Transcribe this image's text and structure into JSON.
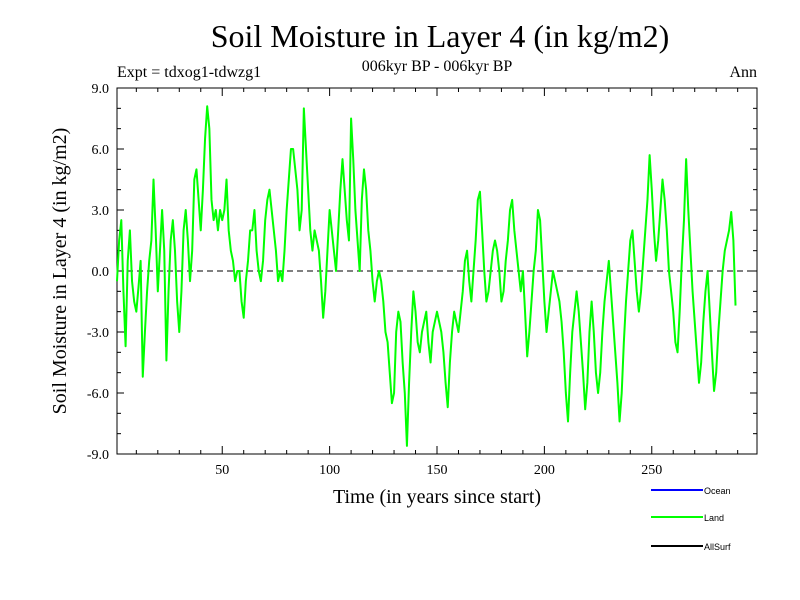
{
  "chart_data": {
    "type": "line",
    "title": "Soil Moisture in Layer 4 (in kg/m2)",
    "subtitle": "006kyr BP - 006kyr BP",
    "expt_label": "Expt = tdxog1-tdwzg1",
    "season_label": "Ann",
    "xlabel": "Time (in years since start)",
    "ylabel": "Soil Moisture in Layer 4 (in kg/m2)",
    "xlim": [
      1,
      299
    ],
    "ylim": [
      -9,
      9
    ],
    "xticks": [
      50,
      100,
      150,
      200,
      250
    ],
    "xtick_labels": [
      "50",
      "100",
      "150",
      "200",
      "250"
    ],
    "yticks": [
      9,
      6,
      3,
      0,
      -3,
      -6,
      -9
    ],
    "ytick_labels": [
      "9.0",
      "6.0",
      "3.0",
      "0.0",
      "-3.0",
      "-6.0",
      "-9.0"
    ],
    "zero_line": true,
    "legend": [
      {
        "name": "Ocean",
        "color": "#0000ff"
      },
      {
        "name": "Land",
        "color": "#00ff00"
      },
      {
        "name": "AllSurf",
        "color": "#000000"
      }
    ],
    "series": [
      {
        "name": "Land",
        "color": "#00ff00",
        "x_start": 1,
        "x_step": 1,
        "values": [
          -0.5,
          1.5,
          2.5,
          -1.0,
          -3.7,
          0.5,
          2.0,
          -0.5,
          -1.5,
          -2.0,
          -0.8,
          0.5,
          -5.2,
          -3.0,
          -1.0,
          0.5,
          1.5,
          4.5,
          2.0,
          -1.0,
          1.0,
          3.0,
          1.0,
          -4.4,
          -1.0,
          1.5,
          2.5,
          1.0,
          -1.5,
          -3.0,
          -1.0,
          2.0,
          3.0,
          1.5,
          -0.5,
          1.0,
          4.5,
          5.0,
          3.5,
          2.0,
          4.0,
          6.5,
          8.1,
          7.0,
          3.5,
          2.5,
          3.0,
          2.0,
          3.0,
          2.5,
          3.0,
          4.5,
          2.0,
          1.0,
          0.5,
          -0.5,
          0.0,
          0.0,
          -1.5,
          -2.3,
          -0.5,
          0.5,
          2.0,
          2.0,
          3.0,
          1.0,
          0.0,
          -0.5,
          0.5,
          2.5,
          3.5,
          4.0,
          3.0,
          2.0,
          1.0,
          -0.5,
          0.0,
          -0.5,
          1.0,
          3.0,
          4.5,
          6.0,
          6.0,
          5.0,
          4.0,
          2.0,
          3.0,
          8.0,
          6.0,
          4.0,
          2.0,
          1.0,
          2.0,
          1.5,
          1.0,
          -0.5,
          -2.3,
          -1.0,
          1.0,
          3.0,
          2.0,
          1.0,
          0.0,
          2.0,
          4.0,
          5.5,
          4.0,
          2.5,
          1.5,
          7.5,
          5.5,
          3.0,
          1.5,
          0.0,
          3.5,
          5.0,
          4.0,
          2.0,
          1.0,
          -0.5,
          -1.5,
          -0.5,
          0.0,
          -0.5,
          -1.5,
          -3.0,
          -3.5,
          -5.0,
          -6.5,
          -6.0,
          -3.0,
          -2.0,
          -2.5,
          -4.5,
          -6.0,
          -8.6,
          -5.5,
          -3.0,
          -1.0,
          -2.0,
          -3.5,
          -4.0,
          -3.0,
          -2.5,
          -2.0,
          -3.5,
          -4.5,
          -3.0,
          -2.5,
          -2.0,
          -2.5,
          -3.0,
          -4.0,
          -5.5,
          -6.7,
          -4.5,
          -3.0,
          -2.0,
          -2.5,
          -3.0,
          -2.0,
          -1.0,
          0.5,
          1.0,
          -0.5,
          -1.5,
          0.0,
          1.5,
          3.5,
          3.9,
          2.0,
          0.0,
          -1.5,
          -1.0,
          0.0,
          1.0,
          1.5,
          1.0,
          0.0,
          -1.5,
          -1.0,
          0.5,
          1.5,
          3.0,
          3.5,
          2.0,
          1.0,
          0.0,
          -1.0,
          0.0,
          -2.0,
          -4.2,
          -3.0,
          -1.5,
          0.0,
          1.0,
          3.0,
          2.5,
          0.5,
          -1.5,
          -3.0,
          -2.0,
          -1.0,
          0.0,
          -0.5,
          -1.0,
          -1.5,
          -2.5,
          -4.0,
          -6.0,
          -7.4,
          -5.0,
          -3.0,
          -2.0,
          -1.0,
          -2.0,
          -3.5,
          -5.0,
          -6.8,
          -5.5,
          -3.0,
          -1.5,
          -3.0,
          -5.0,
          -6.0,
          -5.0,
          -3.0,
          -1.5,
          -0.5,
          0.5,
          -1.0,
          -2.5,
          -4.0,
          -5.5,
          -7.4,
          -6.0,
          -3.5,
          -1.5,
          0.0,
          1.5,
          2.0,
          0.5,
          -1.0,
          -2.0,
          -1.0,
          0.5,
          2.0,
          3.5,
          5.7,
          4.0,
          2.0,
          0.5,
          1.5,
          3.0,
          4.5,
          3.5,
          2.0,
          0.0,
          -1.0,
          -2.0,
          -3.5,
          -4.0,
          -2.0,
          0.5,
          2.5,
          5.5,
          3.0,
          1.0,
          -1.0,
          -2.5,
          -4.0,
          -5.5,
          -4.5,
          -2.5,
          -1.0,
          0.0,
          -2.0,
          -4.0,
          -5.9,
          -5.0,
          -3.0,
          -1.5,
          0.0,
          1.0,
          1.5,
          2.0,
          2.9,
          1.5,
          -1.7
        ]
      }
    ]
  }
}
